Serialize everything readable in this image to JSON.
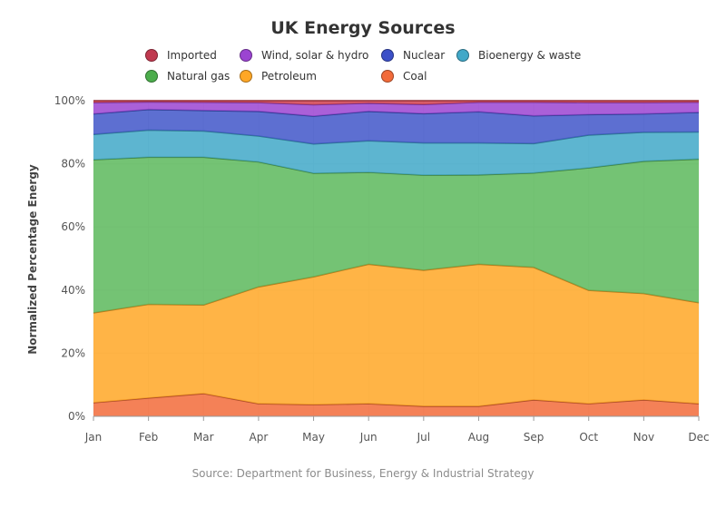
{
  "chart_data": {
    "type": "area",
    "stacked": true,
    "normalized": true,
    "title": "UK Energy Sources",
    "source": "Source: Department for Business, Energy & Industrial Strategy",
    "ylabel": "Normalized Percentage Energy",
    "xlabel": "",
    "ylim": [
      0,
      100
    ],
    "yticks": [
      "0%",
      "20%",
      "40%",
      "60%",
      "80%",
      "100%"
    ],
    "categories": [
      "Jan",
      "Feb",
      "Mar",
      "Apr",
      "May",
      "Jun",
      "Jul",
      "Aug",
      "Sep",
      "Oct",
      "Nov",
      "Dec"
    ],
    "grid": true,
    "legend_position": "top",
    "series": [
      {
        "name": "Coal",
        "color": "#f26b3a",
        "values": [
          4.3,
          5.8,
          7.2,
          4.0,
          3.7,
          4.0,
          3.2,
          3.2,
          5.2,
          4.0,
          5.2,
          4.0
        ]
      },
      {
        "name": "Petroleum",
        "color": "#ffa726",
        "values": [
          28.5,
          29.7,
          28.1,
          37.0,
          40.5,
          44.2,
          43.1,
          45.0,
          42.0,
          35.9,
          33.7,
          32.0
        ]
      },
      {
        "name": "Natural gas",
        "color": "#5cb85c",
        "values": [
          48.5,
          46.6,
          46.8,
          39.6,
          32.8,
          29.1,
          30.1,
          28.3,
          29.9,
          38.8,
          41.9,
          45.5
        ]
      },
      {
        "name": "Bioenergy & waste",
        "color": "#41a8c8",
        "values": [
          8.0,
          8.6,
          8.3,
          8.2,
          9.3,
          10.0,
          10.2,
          10.1,
          9.3,
          10.4,
          9.2,
          8.6
        ]
      },
      {
        "name": "Nuclear",
        "color": "#4156c9",
        "values": [
          6.5,
          6.5,
          6.5,
          7.8,
          8.8,
          9.3,
          9.3,
          9.9,
          8.8,
          6.5,
          5.8,
          6.2
        ]
      },
      {
        "name": "Wind, solar & hydro",
        "color": "#9b44d1",
        "values": [
          3.6,
          2.4,
          2.6,
          2.8,
          3.6,
          2.6,
          2.9,
          3.0,
          4.3,
          3.8,
          3.6,
          3.2
        ]
      },
      {
        "name": "Imported",
        "color": "#d0404f",
        "values": [
          0.6,
          0.4,
          0.5,
          0.6,
          1.3,
          0.8,
          1.2,
          0.5,
          0.5,
          0.6,
          0.6,
          0.5
        ]
      }
    ],
    "legend": [
      {
        "name": "Imported",
        "color": "#c0394f"
      },
      {
        "name": "Wind, solar & hydro",
        "color": "#9b44d1"
      },
      {
        "name": "Nuclear",
        "color": "#3c50c8"
      },
      {
        "name": "Bioenergy & waste",
        "color": "#41a8c8"
      },
      {
        "name": "Natural gas",
        "color": "#4cad4c"
      },
      {
        "name": "Petroleum",
        "color": "#ffa726"
      },
      {
        "name": "Coal",
        "color": "#f26b3a"
      }
    ]
  }
}
